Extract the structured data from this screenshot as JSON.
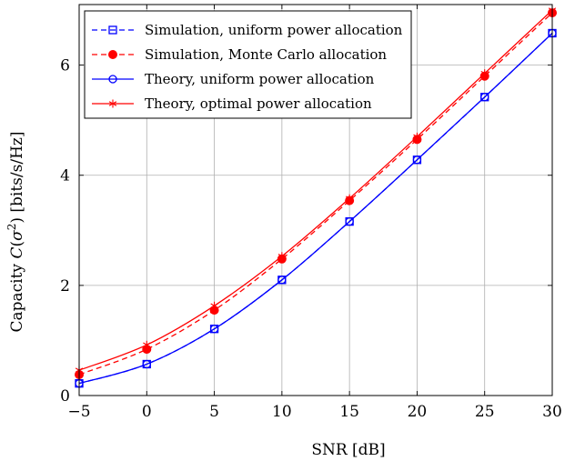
{
  "chart_data": {
    "type": "line",
    "xlabel": "SNR [dB]",
    "ylabel": "Capacity C(σ²) [bits/s/Hz]",
    "ylabel_parts": {
      "prefix": "Capacity ",
      "C": "C",
      "open": "(",
      "sigma": "σ",
      "sup": "2",
      "close": ")",
      "unit": " [bits/s/Hz]"
    },
    "xlim": [
      -5,
      30
    ],
    "ylim": [
      0,
      7.1
    ],
    "grid": true,
    "legend_position": "top-left",
    "x_ticks": [
      -5,
      0,
      5,
      10,
      15,
      20,
      25,
      30
    ],
    "x_tick_labels": [
      "−5",
      "0",
      "5",
      "10",
      "15",
      "20",
      "25",
      "30"
    ],
    "y_ticks": [
      0,
      2,
      4,
      6
    ],
    "y_tick_labels": [
      "0",
      "2",
      "4",
      "6"
    ],
    "x": [
      -5,
      0,
      5,
      10,
      15,
      20,
      25,
      30
    ],
    "series": [
      {
        "name": "Simulation, uniform power allocation",
        "values": [
          0.22,
          0.57,
          1.21,
          2.1,
          3.16,
          4.28,
          5.42,
          6.58
        ],
        "color": "#0000ff",
        "line": "dashed",
        "marker": "square-open"
      },
      {
        "name": "Simulation, Monte Carlo allocation",
        "values": [
          0.38,
          0.84,
          1.55,
          2.48,
          3.54,
          4.65,
          5.8,
          6.95
        ],
        "color": "#ff0000",
        "line": "dashed",
        "marker": "circle-filled"
      },
      {
        "name": "Theory, uniform power allocation",
        "values": [
          0.22,
          0.57,
          1.21,
          2.1,
          3.16,
          4.28,
          5.42,
          6.58
        ],
        "color": "#0000ff",
        "line": "solid",
        "marker": "circle-open"
      },
      {
        "name": "Theory, optimal power allocation",
        "values": [
          0.46,
          0.92,
          1.63,
          2.53,
          3.58,
          4.7,
          5.85,
          7.0
        ],
        "color": "#ff0000",
        "line": "solid",
        "marker": "star"
      }
    ]
  }
}
